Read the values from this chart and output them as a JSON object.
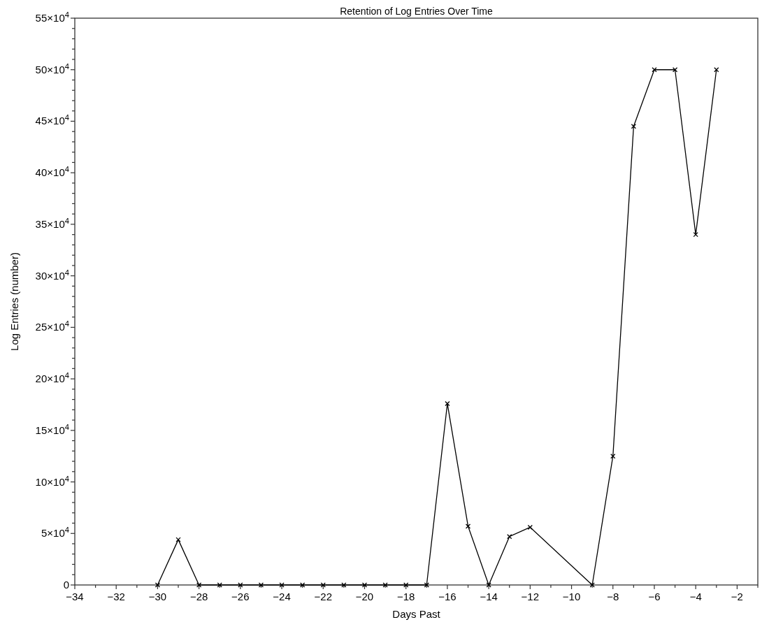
{
  "chart_data": {
    "type": "line",
    "title": "Retention of Log Entries Over Time",
    "xlabel": "Days Past",
    "ylabel": "Log Entries (number)",
    "x": [
      -30,
      -29,
      -28,
      -27,
      -26,
      -25,
      -24,
      -23,
      -22,
      -21,
      -20,
      -19,
      -18,
      -17,
      -16,
      -15,
      -14,
      -13,
      -12,
      -9,
      -8,
      -7,
      -6,
      -5,
      -4,
      -3
    ],
    "series": [
      {
        "color": "#000000",
        "values": [
          0,
          44000,
          0,
          0,
          0,
          0,
          0,
          0,
          0,
          0,
          0,
          0,
          0,
          0,
          176000,
          57000,
          0,
          47000,
          56000,
          0,
          125000,
          445000,
          500000,
          500000,
          340000,
          500000
        ]
      }
    ],
    "xlim": [
      -34,
      -1
    ],
    "xticks": [
      {
        "value": -34,
        "label": "−34"
      },
      {
        "value": -33,
        "label": null
      },
      {
        "value": -32,
        "label": "−32"
      },
      {
        "value": -31,
        "label": null
      },
      {
        "value": -30,
        "label": "−30"
      },
      {
        "value": -29,
        "label": null
      },
      {
        "value": -28,
        "label": "−28"
      },
      {
        "value": -27,
        "label": null
      },
      {
        "value": -26,
        "label": "−26"
      },
      {
        "value": -25,
        "label": null
      },
      {
        "value": -24,
        "label": "−24"
      },
      {
        "value": -23,
        "label": null
      },
      {
        "value": -22,
        "label": "−22"
      },
      {
        "value": -21,
        "label": null
      },
      {
        "value": -20,
        "label": "−20"
      },
      {
        "value": -19,
        "label": null
      },
      {
        "value": -18,
        "label": "−18"
      },
      {
        "value": -17,
        "label": null
      },
      {
        "value": -16,
        "label": "−16"
      },
      {
        "value": -15,
        "label": null
      },
      {
        "value": -14,
        "label": "−14"
      },
      {
        "value": -13,
        "label": null
      },
      {
        "value": -12,
        "label": "−12"
      },
      {
        "value": -11,
        "label": null
      },
      {
        "value": -10,
        "label": "−10"
      },
      {
        "value": -9,
        "label": null
      },
      {
        "value": -8,
        "label": "−8"
      },
      {
        "value": -7,
        "label": null
      },
      {
        "value": -6,
        "label": "−6"
      },
      {
        "value": -5,
        "label": null
      },
      {
        "value": -4,
        "label": "−4"
      },
      {
        "value": -3,
        "label": null
      },
      {
        "value": -2,
        "label": "−2"
      },
      {
        "value": -1,
        "label": null
      }
    ],
    "ylim": [
      0,
      550000
    ],
    "yticks": [
      0,
      {
        "value": 10000,
        "label": null
      },
      {
        "value": 20000,
        "label": null
      },
      {
        "value": 30000,
        "label": null
      },
      {
        "value": 40000,
        "label": null
      },
      {
        "value": 50000,
        "label": "5×10$^{4}$"
      },
      {
        "value": 60000,
        "label": null
      },
      {
        "value": 70000,
        "label": null
      },
      {
        "value": 80000,
        "label": null
      },
      {
        "value": 90000,
        "label": null
      },
      {
        "value": 100000,
        "label": "10×10$^{4}$"
      },
      {
        "value": 110000,
        "label": null
      },
      {
        "value": 120000,
        "label": null
      },
      {
        "value": 130000,
        "label": null
      },
      {
        "value": 140000,
        "label": null
      },
      {
        "value": 150000,
        "label": "15×10$^{4}$"
      },
      {
        "value": 160000,
        "label": null
      },
      {
        "value": 170000,
        "label": null
      },
      {
        "value": 180000,
        "label": null
      },
      {
        "value": 190000,
        "label": null
      },
      {
        "value": 200000,
        "label": "20×10$^{4}$"
      },
      {
        "value": 210000,
        "label": null
      },
      {
        "value": 220000,
        "label": null
      },
      {
        "value": 230000,
        "label": null
      },
      {
        "value": 240000,
        "label": null
      },
      {
        "value": 250000,
        "label": "25×10$^{4}$"
      },
      {
        "value": 260000,
        "label": null
      },
      {
        "value": 270000,
        "label": null
      },
      {
        "value": 280000,
        "label": null
      },
      {
        "value": 290000,
        "label": null
      },
      {
        "value": 300000,
        "label": "30×10$^{4}$"
      },
      {
        "value": 310000,
        "label": null
      },
      {
        "value": 320000,
        "label": null
      },
      {
        "value": 330000,
        "label": null
      },
      {
        "value": 340000,
        "label": null
      },
      {
        "value": 350000,
        "label": "35×10$^{4}$"
      },
      {
        "value": 360000,
        "label": null
      },
      {
        "value": 370000,
        "label": null
      },
      {
        "value": 380000,
        "label": null
      },
      {
        "value": 390000,
        "label": null
      },
      {
        "value": 400000,
        "label": "40×10$^{4}$"
      },
      {
        "value": 410000,
        "label": null
      },
      {
        "value": 420000,
        "label": null
      },
      {
        "value": 430000,
        "label": null
      },
      {
        "value": 440000,
        "label": null
      },
      {
        "value": 450000,
        "label": "45×10$^{4}$"
      },
      {
        "value": 460000,
        "label": null
      },
      {
        "value": 470000,
        "label": null
      },
      {
        "value": 480000,
        "label": null
      },
      {
        "value": 490000,
        "label": null
      },
      {
        "value": 500000,
        "label": "50×10$^{4}$"
      },
      {
        "value": 510000,
        "label": null
      },
      {
        "value": 520000,
        "label": null
      },
      {
        "value": 530000,
        "label": null
      },
      {
        "value": 540000,
        "label": null
      },
      {
        "value": 550000,
        "label": "55×10$^{4}$"
      }
    ],
    "marker": "cross",
    "line_style": "solid",
    "grid": false
  }
}
